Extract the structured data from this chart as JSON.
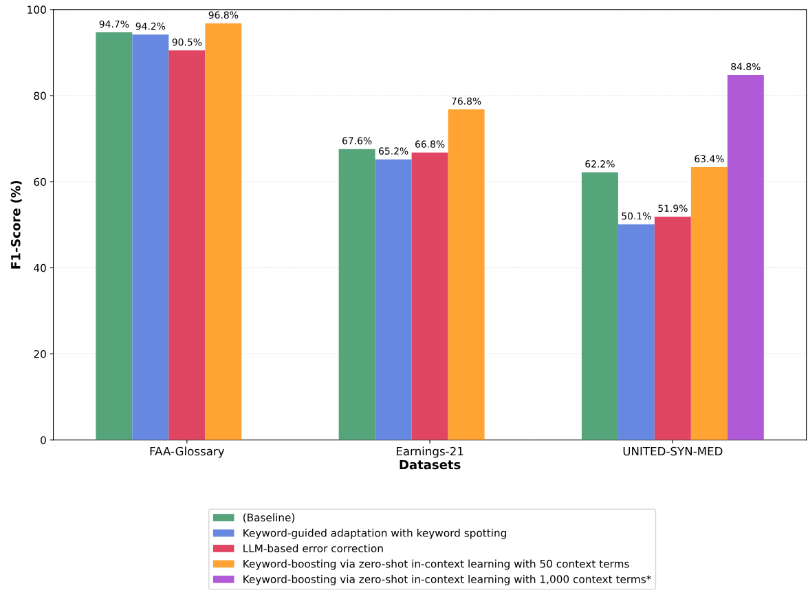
{
  "chart_data": {
    "type": "bar",
    "xlabel": "Datasets",
    "ylabel": "F1-Score (%)",
    "categories": [
      "FAA-Glossary",
      "Earnings-21",
      "UNITED-SYN-MED"
    ],
    "series": [
      {
        "name": "(Baseline)",
        "color": "#55a47a",
        "values": [
          94.7,
          67.6,
          62.2
        ],
        "value_labels": [
          "94.7%",
          "67.6%",
          "62.2%"
        ]
      },
      {
        "name": "Keyword-guided adaptation with keyword spotting",
        "color": "#6688e0",
        "values": [
          94.2,
          65.2,
          50.1
        ],
        "value_labels": [
          "94.2%",
          "65.2%",
          "50.1%"
        ]
      },
      {
        "name": "LLM-based error correction",
        "color": "#e04562",
        "values": [
          90.5,
          66.8,
          51.9
        ],
        "value_labels": [
          "90.5%",
          "66.8%",
          "51.9%"
        ]
      },
      {
        "name": "Keyword-boosting via zero-shot in-context learning with 50 context terms",
        "color": "#ffa333",
        "values": [
          96.8,
          76.8,
          63.4
        ],
        "value_labels": [
          "96.8%",
          "76.8%",
          "63.4%"
        ]
      },
      {
        "name": "Keyword-boosting via zero-shot in-context learning with 1,000 context terms*",
        "color": "#b05ad8",
        "values": [
          null,
          null,
          84.8
        ],
        "value_labels": [
          null,
          null,
          "84.8%"
        ]
      }
    ],
    "ylim": [
      0,
      100
    ],
    "yticks": [
      0,
      20,
      40,
      60,
      80,
      100
    ],
    "grid": "y",
    "legend": "bottom"
  }
}
